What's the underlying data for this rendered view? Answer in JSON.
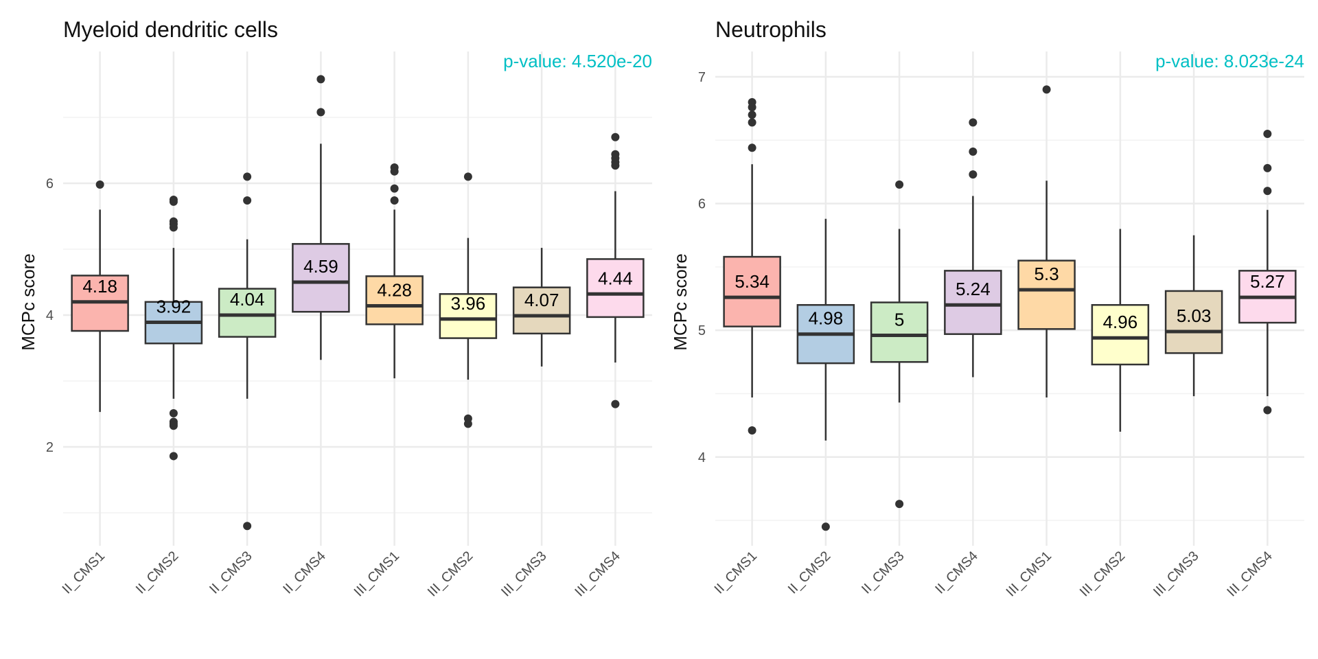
{
  "chart_data": [
    {
      "type": "boxplot",
      "title": "Myeloid dendritic cells",
      "annotation": "p-value: 4.520e-20",
      "ylabel": "MCPc score",
      "ylim": [
        0.5,
        8.0
      ],
      "yticks": [
        2,
        4,
        6
      ],
      "ytick_labels": [
        "2",
        "4",
        "6"
      ],
      "minor_yticks": [
        1,
        3,
        5,
        7
      ],
      "categories": [
        "II_CMS1",
        "II_CMS2",
        "II_CMS3",
        "II_CMS4",
        "III_CMS1",
        "III_CMS2",
        "III_CMS3",
        "III_CMS4"
      ],
      "boxes": [
        {
          "q1": 3.76,
          "median": 4.2,
          "q3": 4.6,
          "whisker_low": 2.53,
          "whisker_high": 5.6,
          "label": "4.18",
          "outliers": [
            5.98
          ]
        },
        {
          "q1": 3.57,
          "median": 3.89,
          "q3": 4.2,
          "whisker_low": 2.73,
          "whisker_high": 5.02,
          "label": "3.92",
          "outliers": [
            5.75,
            5.72,
            5.42,
            5.38,
            5.33,
            2.51,
            2.38,
            2.35,
            2.32,
            1.86
          ]
        },
        {
          "q1": 3.67,
          "median": 4.0,
          "q3": 4.4,
          "whisker_low": 2.73,
          "whisker_high": 5.15,
          "label": "4.04",
          "outliers": [
            6.1,
            5.74,
            0.8
          ]
        },
        {
          "q1": 4.05,
          "median": 4.5,
          "q3": 5.08,
          "whisker_low": 3.32,
          "whisker_high": 6.6,
          "label": "4.59",
          "outliers": [
            7.58,
            7.08
          ]
        },
        {
          "q1": 3.86,
          "median": 4.14,
          "q3": 4.59,
          "whisker_low": 3.04,
          "whisker_high": 5.6,
          "label": "4.28",
          "outliers": [
            6.24,
            6.18,
            5.92,
            5.74
          ]
        },
        {
          "q1": 3.65,
          "median": 3.94,
          "q3": 4.32,
          "whisker_low": 3.02,
          "whisker_high": 5.17,
          "label": "3.96",
          "outliers": [
            6.1,
            2.43,
            2.35
          ]
        },
        {
          "q1": 3.72,
          "median": 3.99,
          "q3": 4.42,
          "whisker_low": 3.22,
          "whisker_high": 5.02,
          "label": "4.07",
          "outliers": []
        },
        {
          "q1": 3.97,
          "median": 4.32,
          "q3": 4.85,
          "whisker_low": 3.28,
          "whisker_high": 5.88,
          "label": "4.44",
          "outliers": [
            6.7,
            6.44,
            6.38,
            6.32,
            6.27,
            2.65
          ]
        }
      ],
      "fill_colors": [
        "#FBB4AE",
        "#B3CDE3",
        "#CCEBC5",
        "#DECBE4",
        "#FED9A6",
        "#FFFFCC",
        "#E5D8BD",
        "#FDDAEC"
      ]
    },
    {
      "type": "boxplot",
      "title": "Neutrophils",
      "annotation": "p-value: 8.023e-24",
      "ylabel": "MCPc score",
      "ylim": [
        3.3,
        7.2
      ],
      "yticks": [
        4,
        5,
        6,
        7
      ],
      "ytick_labels": [
        "4",
        "5",
        "6",
        "7"
      ],
      "minor_yticks": [
        3.5,
        4.5,
        5.5,
        6.5
      ],
      "categories": [
        "II_CMS1",
        "II_CMS2",
        "II_CMS3",
        "II_CMS4",
        "III_CMS1",
        "III_CMS2",
        "III_CMS3",
        "III_CMS4"
      ],
      "boxes": [
        {
          "q1": 5.03,
          "median": 5.26,
          "q3": 5.58,
          "whisker_low": 4.47,
          "whisker_high": 6.31,
          "label": "5.34",
          "outliers": [
            6.8,
            6.76,
            6.7,
            6.64,
            6.44,
            4.21
          ]
        },
        {
          "q1": 4.74,
          "median": 4.97,
          "q3": 5.2,
          "whisker_low": 4.13,
          "whisker_high": 5.88,
          "label": "4.98",
          "outliers": [
            3.45
          ]
        },
        {
          "q1": 4.75,
          "median": 4.96,
          "q3": 5.22,
          "whisker_low": 4.43,
          "whisker_high": 5.8,
          "label": "5",
          "outliers": [
            6.15,
            3.63
          ]
        },
        {
          "q1": 4.97,
          "median": 5.2,
          "q3": 5.47,
          "whisker_low": 4.63,
          "whisker_high": 6.06,
          "label": "5.24",
          "outliers": [
            6.64,
            6.41,
            6.23
          ]
        },
        {
          "q1": 5.01,
          "median": 5.32,
          "q3": 5.55,
          "whisker_low": 4.47,
          "whisker_high": 6.18,
          "label": "5.3",
          "outliers": [
            6.9
          ]
        },
        {
          "q1": 4.73,
          "median": 4.94,
          "q3": 5.2,
          "whisker_low": 4.2,
          "whisker_high": 5.8,
          "label": "4.96",
          "outliers": []
        },
        {
          "q1": 4.82,
          "median": 4.99,
          "q3": 5.31,
          "whisker_low": 4.48,
          "whisker_high": 5.75,
          "label": "5.03",
          "outliers": []
        },
        {
          "q1": 5.06,
          "median": 5.26,
          "q3": 5.47,
          "whisker_low": 4.48,
          "whisker_high": 5.95,
          "label": "5.27",
          "outliers": [
            6.55,
            6.28,
            6.1,
            4.37
          ]
        }
      ],
      "fill_colors": [
        "#FBB4AE",
        "#B3CDE3",
        "#CCEBC5",
        "#DECBE4",
        "#FED9A6",
        "#FFFFCC",
        "#E5D8BD",
        "#FDDAEC"
      ]
    }
  ],
  "style": {
    "annotation_color": "#00BFC4",
    "grid_major_color": "#EBEBEB",
    "grid_minor_color": "#F2F2F2",
    "box_line_color": "#333333",
    "outlier_color": "#333333"
  }
}
